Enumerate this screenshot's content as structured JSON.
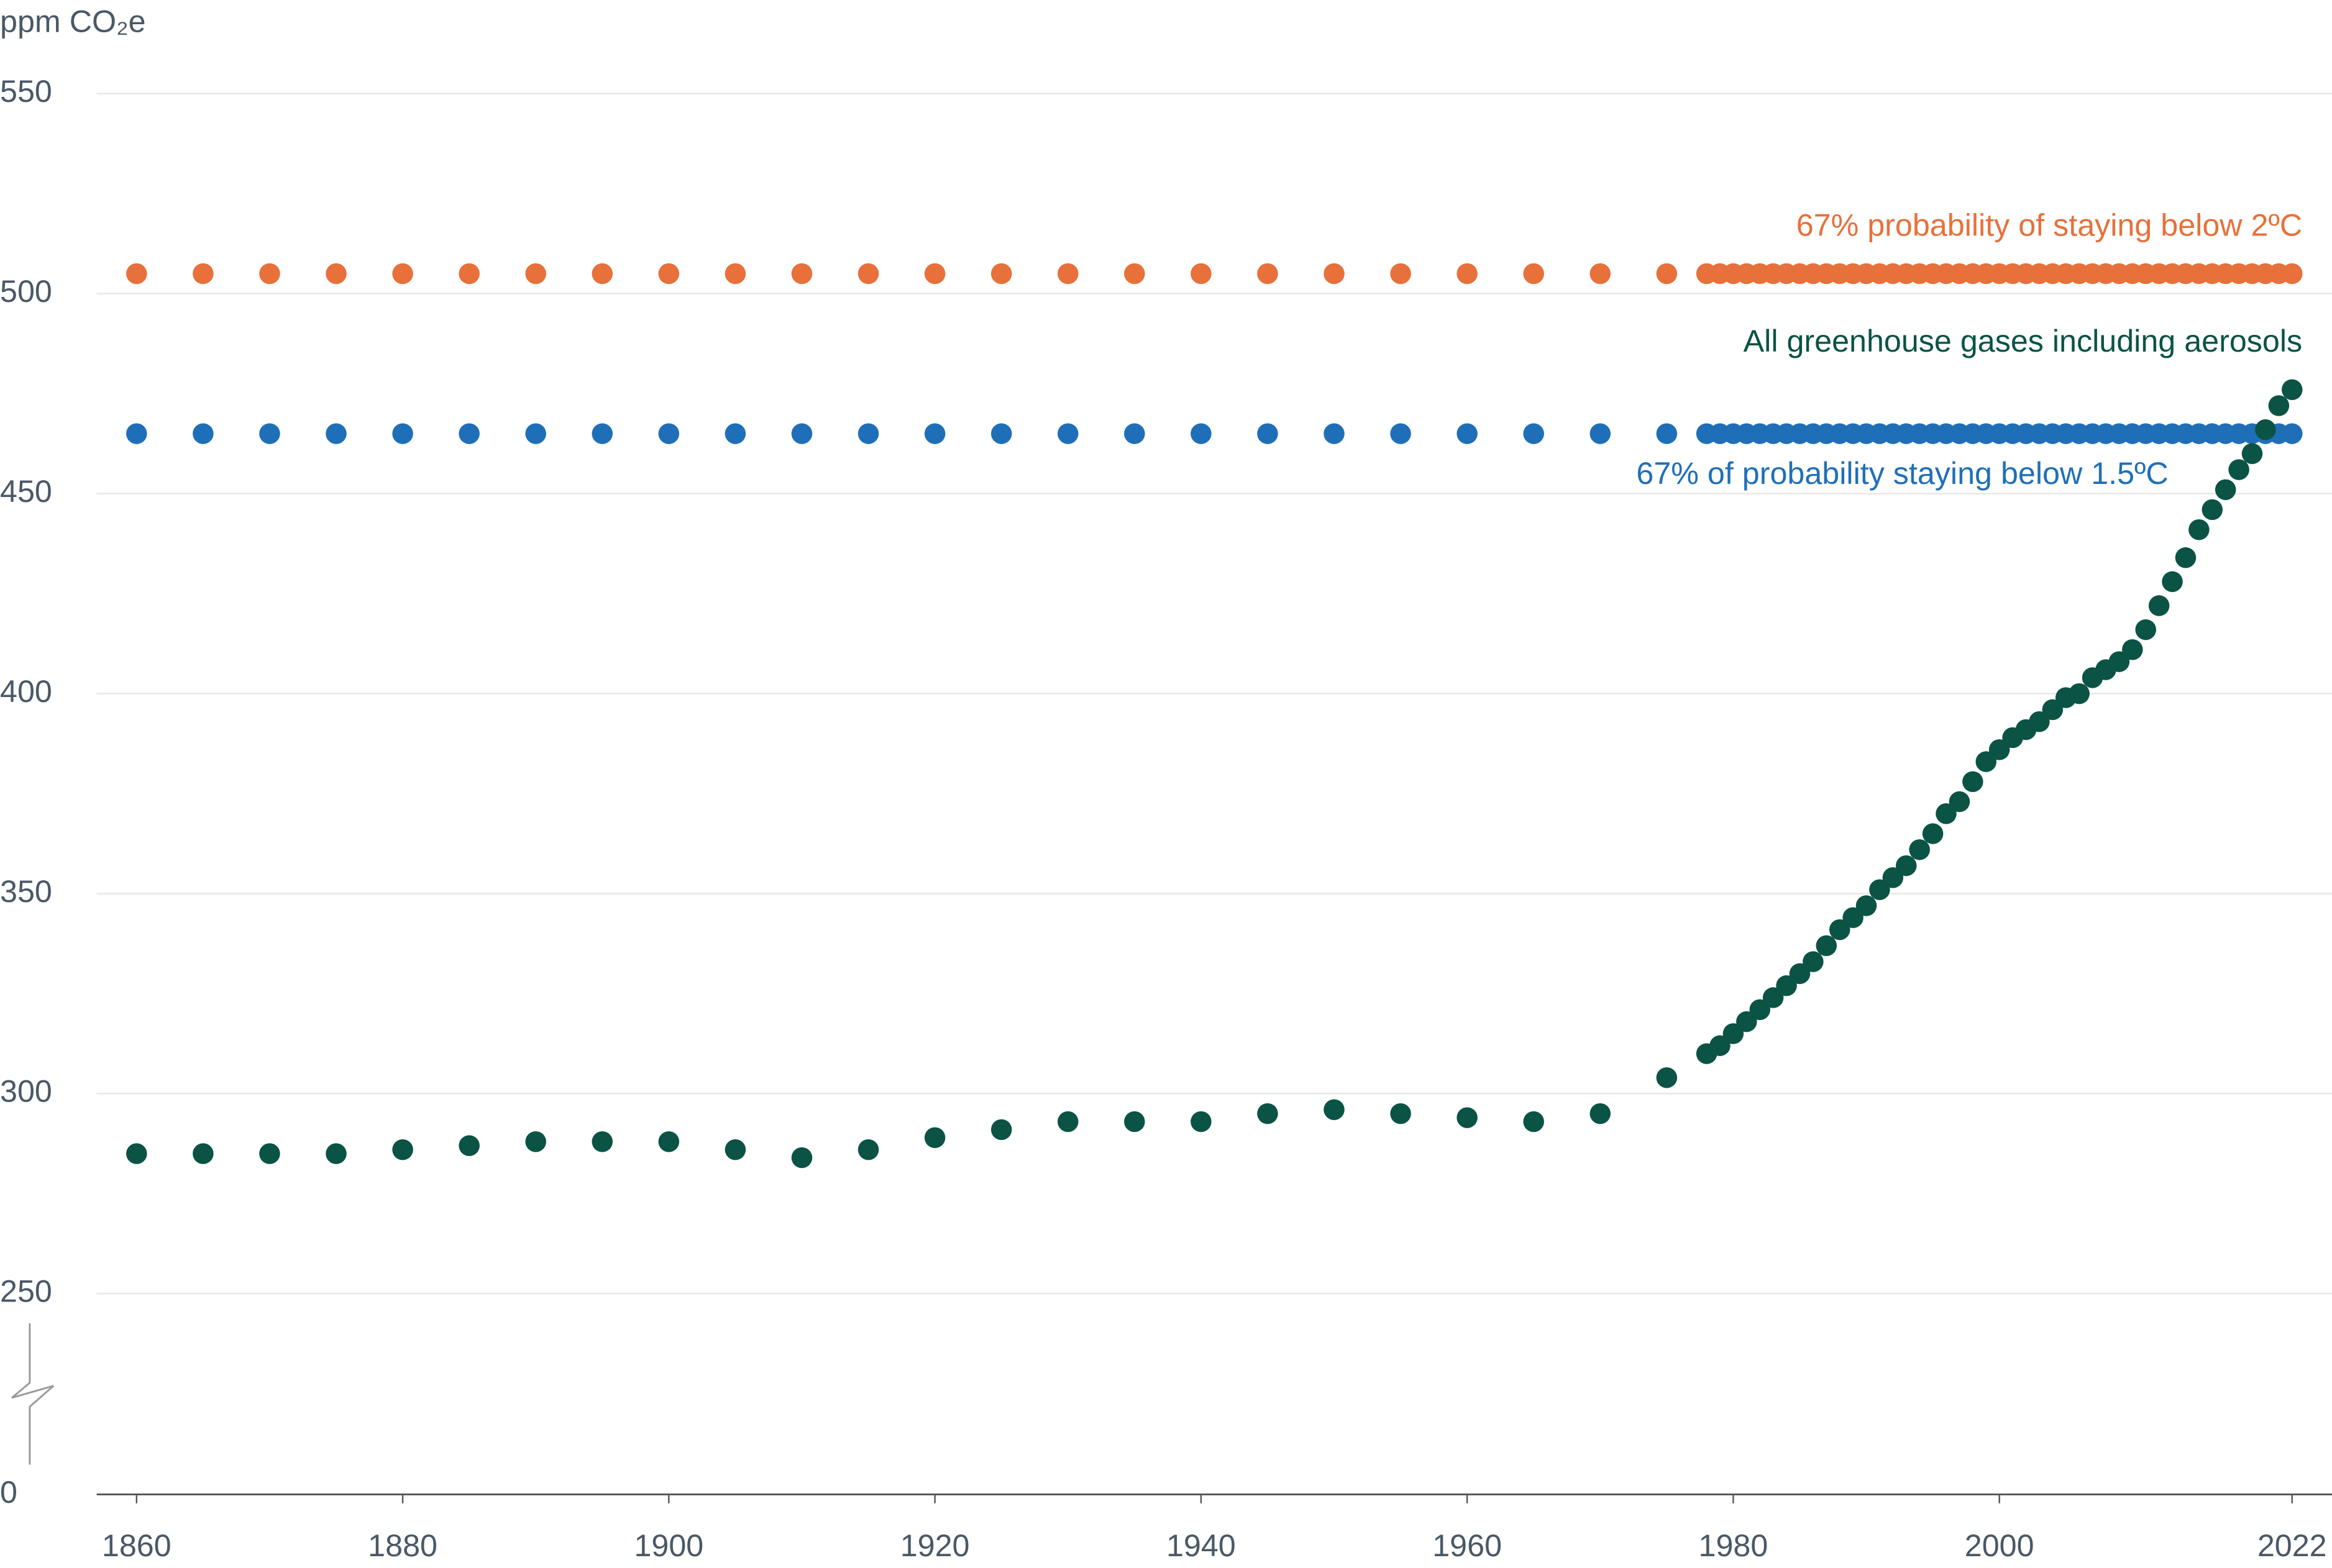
{
  "chart_data": {
    "type": "scatter",
    "y_label": "ppm CO₂e",
    "x": [
      1860,
      1865,
      1870,
      1875,
      1880,
      1885,
      1890,
      1895,
      1900,
      1905,
      1910,
      1915,
      1920,
      1925,
      1930,
      1935,
      1940,
      1945,
      1950,
      1955,
      1960,
      1965,
      1970,
      1975,
      1978,
      1979,
      1980,
      1981,
      1982,
      1983,
      1984,
      1985,
      1986,
      1987,
      1988,
      1989,
      1990,
      1991,
      1992,
      1993,
      1994,
      1995,
      1996,
      1997,
      1998,
      1999,
      2000,
      2001,
      2002,
      2003,
      2004,
      2005,
      2006,
      2007,
      2008,
      2009,
      2010,
      2011,
      2012,
      2013,
      2014,
      2015,
      2016,
      2017,
      2018,
      2019,
      2020,
      2021,
      2022
    ],
    "series": [
      {
        "name": "67% probability of staying below 2ºC",
        "color": "#e8703a",
        "values": [
          505,
          505,
          505,
          505,
          505,
          505,
          505,
          505,
          505,
          505,
          505,
          505,
          505,
          505,
          505,
          505,
          505,
          505,
          505,
          505,
          505,
          505,
          505,
          505,
          505,
          505,
          505,
          505,
          505,
          505,
          505,
          505,
          505,
          505,
          505,
          505,
          505,
          505,
          505,
          505,
          505,
          505,
          505,
          505,
          505,
          505,
          505,
          505,
          505,
          505,
          505,
          505,
          505,
          505,
          505,
          505,
          505,
          505,
          505,
          505,
          505,
          505,
          505,
          505,
          505,
          505,
          505,
          505,
          505
        ]
      },
      {
        "name": "67% of probability staying below 1.5ºC",
        "color": "#1f6fb8",
        "values": [
          465,
          465,
          465,
          465,
          465,
          465,
          465,
          465,
          465,
          465,
          465,
          465,
          465,
          465,
          465,
          465,
          465,
          465,
          465,
          465,
          465,
          465,
          465,
          465,
          465,
          465,
          465,
          465,
          465,
          465,
          465,
          465,
          465,
          465,
          465,
          465,
          465,
          465,
          465,
          465,
          465,
          465,
          465,
          465,
          465,
          465,
          465,
          465,
          465,
          465,
          465,
          465,
          465,
          465,
          465,
          465,
          465,
          465,
          465,
          465,
          465,
          465,
          465,
          465,
          465,
          465,
          465,
          465,
          465
        ]
      },
      {
        "name": "All greenhouse gases including aerosols",
        "color": "#0b5345",
        "values": [
          285,
          285,
          285,
          285,
          286,
          287,
          288,
          288,
          288,
          286,
          284,
          286,
          289,
          291,
          293,
          293,
          293,
          295,
          296,
          295,
          294,
          293,
          295,
          304,
          310,
          312,
          315,
          318,
          321,
          324,
          327,
          330,
          333,
          337,
          341,
          344,
          347,
          351,
          354,
          357,
          361,
          365,
          370,
          373,
          378,
          383,
          386,
          389,
          391,
          393,
          396,
          399,
          400,
          404,
          406,
          408,
          411,
          416,
          422,
          428,
          434,
          441,
          446,
          451,
          456,
          460,
          466,
          472,
          476
        ]
      }
    ],
    "xlim": [
      1857,
      2025
    ],
    "xticks": [
      1860,
      1880,
      1900,
      1920,
      1940,
      1960,
      1980,
      2000,
      2022
    ],
    "ylim": [
      0,
      550
    ],
    "yticks": [
      0,
      250,
      300,
      350,
      400,
      450,
      500,
      550
    ],
    "y_axis_break": true,
    "grid": true
  }
}
